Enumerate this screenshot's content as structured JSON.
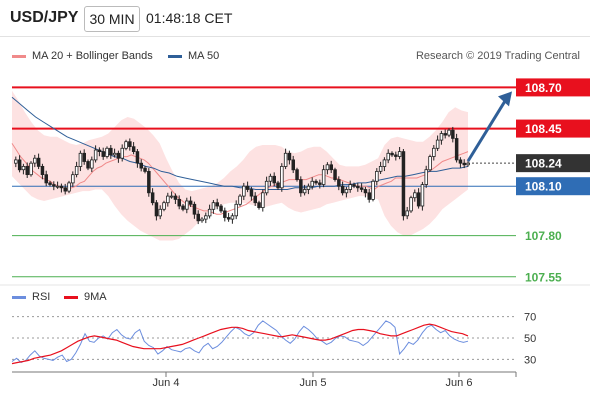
{
  "header": {
    "pair": "USD/JPY",
    "interval": "30 MIN",
    "time": "01:48:18 CET"
  },
  "legend": {
    "bollinger_label": "MA 20 + Bollinger Bands",
    "ma50_label": "MA 50",
    "copyright": "Research © 2019 Trading Central",
    "rsi_label": "RSI",
    "ma9_label": "9MA"
  },
  "colors": {
    "resistance": "#e8101e",
    "support": "#4caf50",
    "current": "#333333",
    "pivot": "#2f6db5",
    "candle": "#222222",
    "band": "#fde2e2",
    "ma20": "#f08a8a",
    "ma50": "#2f5f98",
    "rsi": "#6c8ede",
    "rsi_ma": "#e8101e",
    "arrow": "#2f5f98"
  },
  "chart_data": {
    "type": "line",
    "title": "USD/JPY",
    "xlabel": "",
    "ylabel": "",
    "ylim": [
      107.5,
      108.83
    ],
    "x_ticks": [
      "Jun 4",
      "Jun 5",
      "Jun 6"
    ],
    "price_levels": [
      {
        "value": 108.7,
        "label": "108.70",
        "kind": "resistance"
      },
      {
        "value": 108.45,
        "label": "108.45",
        "kind": "resistance"
      },
      {
        "value": 108.24,
        "label": "108.24",
        "kind": "current"
      },
      {
        "value": 108.1,
        "label": "108.10",
        "kind": "pivot"
      },
      {
        "value": 107.8,
        "label": "107.80",
        "kind": "support"
      },
      {
        "value": 107.55,
        "label": "107.55",
        "kind": "support"
      }
    ],
    "series": [
      {
        "name": "USD/JPY",
        "values": [
          108.24,
          108.26,
          108.2,
          108.22,
          108.17,
          108.24,
          108.27,
          108.22,
          108.17,
          108.12,
          108.11,
          108.1,
          108.1,
          108.09,
          108.07,
          108.12,
          108.17,
          108.22,
          108.3,
          108.25,
          108.21,
          108.26,
          108.32,
          108.31,
          108.28,
          108.33,
          108.29,
          108.3,
          108.27,
          108.33,
          108.37,
          108.34,
          108.31,
          108.24,
          108.21,
          108.19,
          108.06,
          108.0,
          107.92,
          107.96,
          108.0,
          108.04,
          108.04,
          108.02,
          107.98,
          107.96,
          108.01,
          107.99,
          107.93,
          107.89,
          107.9,
          107.92,
          107.96,
          108.0,
          107.98,
          107.95,
          107.91,
          107.9,
          107.92,
          107.99,
          108.04,
          108.1,
          108.08,
          108.04,
          108.0,
          107.97,
          108.06,
          108.13,
          108.16,
          108.12,
          108.09,
          108.22,
          108.3,
          108.26,
          108.2,
          108.14,
          108.06,
          108.08,
          108.1,
          108.13,
          108.12,
          108.11,
          108.2,
          108.23,
          108.2,
          108.14,
          108.1,
          108.06,
          108.08,
          108.11,
          108.1,
          108.09,
          108.08,
          108.06,
          108.02,
          108.13,
          108.19,
          108.22,
          108.26,
          108.3,
          108.29,
          108.28,
          108.31,
          107.92,
          107.95,
          108.03,
          108.06,
          107.98,
          108.11,
          108.2,
          108.28,
          108.33,
          108.38,
          108.42,
          108.41,
          108.44,
          108.39,
          108.26,
          108.24,
          108.23,
          108.24
        ]
      },
      {
        "name": "MA 20",
        "values": [
          108.36,
          108.32,
          108.28,
          108.25,
          108.22,
          108.19,
          108.17,
          108.15,
          108.14,
          108.13,
          108.11,
          108.1,
          108.09,
          108.08,
          108.09,
          108.1,
          108.12,
          108.13,
          108.16,
          108.19,
          108.21,
          108.22,
          108.24,
          108.25,
          108.26,
          108.27,
          108.28,
          108.28,
          108.29,
          108.28,
          108.27,
          108.26,
          108.24,
          108.21,
          108.18,
          108.15,
          108.12,
          108.09,
          108.06,
          108.03,
          108.01,
          107.99,
          107.98,
          107.97,
          107.96,
          107.95,
          107.95,
          107.94,
          107.93,
          107.93,
          107.94,
          107.95,
          107.96,
          107.97,
          107.98,
          107.99,
          108.01,
          108.03,
          108.05,
          108.07,
          108.09,
          108.1,
          108.11,
          108.12,
          108.13,
          108.14,
          108.14,
          108.14,
          108.14,
          108.14,
          108.15,
          108.16,
          108.17,
          108.17,
          108.16,
          108.15,
          108.15,
          108.14,
          108.13,
          108.12,
          108.11,
          108.1,
          108.1,
          108.1,
          108.09,
          108.08,
          108.1,
          108.11,
          108.12,
          108.13,
          108.15,
          108.15,
          108.15,
          108.15,
          108.15,
          108.15,
          108.16,
          108.17,
          108.19,
          108.21,
          108.23,
          108.25,
          108.26,
          108.27,
          108.28,
          108.29,
          108.3,
          108.31
        ]
      },
      {
        "name": "MA 50",
        "values": [
          108.64,
          108.6,
          108.56,
          108.52,
          108.49,
          108.46,
          108.43,
          108.4,
          108.38,
          108.36,
          108.34,
          108.32,
          108.3,
          108.28,
          108.27,
          108.25,
          108.24,
          108.22,
          108.21,
          108.19,
          108.18,
          108.16,
          108.15,
          108.14,
          108.13,
          108.12,
          108.11,
          108.1,
          108.1,
          108.09,
          108.09,
          108.08,
          108.08,
          108.08,
          108.08,
          108.08,
          108.09,
          108.09,
          108.09,
          108.1,
          108.1,
          108.1,
          108.11,
          108.11,
          108.12,
          108.12,
          108.13,
          108.14,
          108.15,
          108.16,
          108.16,
          108.17,
          108.18,
          108.19,
          108.19,
          108.2,
          108.21,
          108.21,
          108.22
        ]
      }
    ],
    "band_upper": [
      108.68,
      108.62,
      108.55,
      108.49,
      108.44,
      108.41,
      108.4,
      108.4,
      108.38,
      108.36,
      108.35,
      108.36,
      108.38,
      108.39,
      108.4,
      108.42,
      108.46,
      108.5,
      108.52,
      108.51,
      108.48,
      108.45,
      108.41,
      108.36,
      108.27,
      108.19,
      108.12,
      108.08,
      108.07,
      108.08,
      108.09,
      108.1,
      108.12,
      108.15,
      108.19,
      108.22,
      108.26,
      108.31,
      108.34,
      108.35,
      108.35,
      108.35,
      108.34,
      108.31,
      108.3,
      108.31,
      108.33,
      108.34,
      108.34,
      108.31,
      108.27,
      108.23,
      108.22,
      108.22,
      108.22,
      108.23,
      108.25,
      108.27,
      108.35,
      108.39,
      108.4,
      108.39,
      108.38,
      108.37,
      108.37,
      108.4,
      108.44,
      108.49,
      108.55,
      108.58,
      108.56,
      108.55
    ],
    "band_lower": [
      108.16,
      108.12,
      108.08,
      108.04,
      108.02,
      108.01,
      108.02,
      108.03,
      108.04,
      108.05,
      108.06,
      108.07,
      108.07,
      108.08,
      108.08,
      108.04,
      107.98,
      107.93,
      107.89,
      107.86,
      107.83,
      107.81,
      107.79,
      107.77,
      107.77,
      107.77,
      107.78,
      107.81,
      107.84,
      107.88,
      107.92,
      107.95,
      107.97,
      107.99,
      108.0,
      108.0,
      108.0,
      107.99,
      107.98,
      107.97,
      107.98,
      107.99,
      108.0,
      107.97,
      107.95,
      107.94,
      107.95,
      107.96,
      107.97,
      107.99,
      108.0,
      108.01,
      108.02,
      108.03,
      108.04,
      108.04,
      108.03,
      108.02,
      107.92,
      107.86,
      107.82,
      107.8,
      107.8,
      107.82,
      107.84,
      107.87,
      107.91,
      107.96,
      107.99,
      108.02,
      108.05,
      108.08
    ],
    "projection": {
      "from": 108.24,
      "to": 108.7
    },
    "rsi": {
      "ticks": [
        70,
        50,
        30
      ],
      "ylim": [
        20,
        80
      ],
      "rsi_values": [
        28,
        31,
        27,
        29,
        34,
        38,
        33,
        31,
        30,
        29,
        32,
        34,
        28,
        30,
        36,
        44,
        54,
        47,
        46,
        50,
        52,
        49,
        55,
        58,
        53,
        50,
        49,
        55,
        58,
        47,
        43,
        41,
        35,
        38,
        42,
        39,
        38,
        37,
        40,
        41,
        38,
        36,
        42,
        45,
        40,
        42,
        46,
        51,
        56,
        60,
        58,
        54,
        52,
        55,
        62,
        66,
        63,
        60,
        57,
        52,
        48,
        45,
        49,
        56,
        61,
        58,
        54,
        49,
        47,
        44,
        46,
        50,
        52,
        51,
        48,
        47,
        46,
        43,
        46,
        51,
        56,
        61,
        66,
        64,
        60,
        35,
        40,
        46,
        44,
        48,
        55,
        60,
        62,
        58,
        55,
        57,
        52,
        49,
        47,
        46,
        47
      ],
      "ma_values": [
        26,
        27,
        28,
        29,
        31,
        32,
        33,
        34,
        36,
        38,
        41,
        44,
        47,
        49,
        51,
        52,
        51,
        50,
        49,
        48,
        46,
        44,
        42,
        41,
        40,
        40,
        40,
        40,
        41,
        42,
        43,
        44,
        46,
        48,
        50,
        52,
        54,
        56,
        58,
        59,
        60,
        60,
        59,
        57,
        56,
        55,
        54,
        53,
        52,
        51,
        52,
        53,
        52,
        51,
        50,
        49,
        48,
        48,
        49,
        51,
        53,
        55,
        57,
        58,
        58,
        57,
        56,
        54,
        53,
        52,
        52,
        54,
        56,
        58,
        60,
        62,
        63,
        62,
        60,
        58,
        56,
        55,
        54,
        52
      ]
    }
  }
}
